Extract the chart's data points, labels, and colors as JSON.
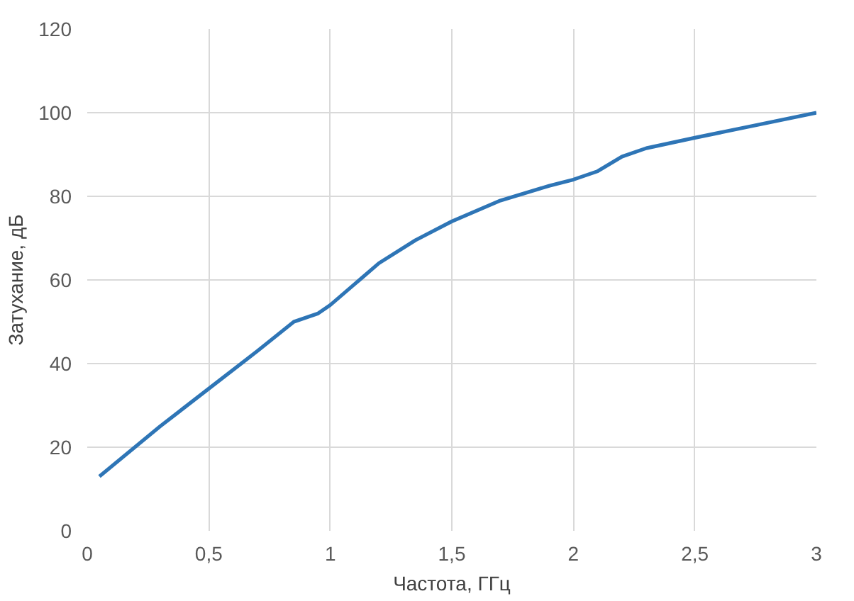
{
  "chart_data": {
    "type": "line",
    "xlabel": "Частота, ГГц",
    "ylabel": "Затухание, дБ",
    "x": [
      0.05,
      0.3,
      0.5,
      0.7,
      0.85,
      0.95,
      1.0,
      1.1,
      1.2,
      1.35,
      1.5,
      1.7,
      1.9,
      2.0,
      2.1,
      2.2,
      2.3,
      2.5,
      2.75,
      3.0
    ],
    "series": [
      {
        "color": "#2e75b6",
        "values": [
          13,
          25,
          34,
          43,
          50,
          52,
          54,
          59,
          64,
          69.5,
          74,
          79,
          82.5,
          84,
          86,
          89.5,
          91.5,
          94,
          97,
          100
        ]
      }
    ],
    "xlim": [
      0,
      3
    ],
    "ylim": [
      0,
      120
    ],
    "xticks": [
      0,
      {
        "value": 0.5,
        "label": "0,5"
      },
      1,
      {
        "value": 1.5,
        "label": "1,5"
      },
      2,
      {
        "value": 2.5,
        "label": "2,5"
      },
      3
    ],
    "yticks": [
      0,
      20,
      40,
      60,
      80,
      100,
      120
    ],
    "grid": true,
    "marker": "none",
    "line_style": "solid"
  }
}
